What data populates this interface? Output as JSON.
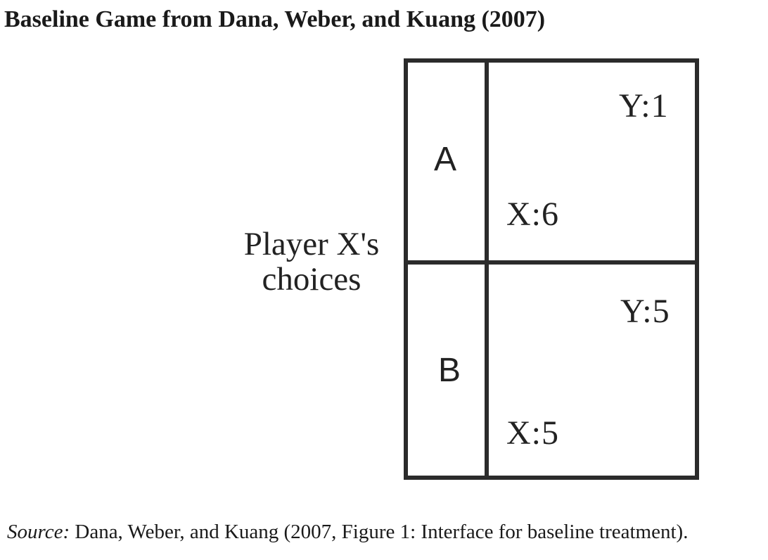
{
  "title": "Baseline Game from Dana, Weber, and Kuang (2007)",
  "row_label": {
    "line1": "Player X's",
    "line2": "choices"
  },
  "choices": [
    {
      "label": "A",
      "payoff_y": "Y:1",
      "payoff_x": "X:6"
    },
    {
      "label": "B",
      "payoff_y": "Y:5",
      "payoff_x": "X:5"
    }
  ],
  "source": {
    "label": "Source:",
    "text": " Dana, Weber, and Kuang (2007, Figure 1: Interface for baseline treatment)."
  }
}
